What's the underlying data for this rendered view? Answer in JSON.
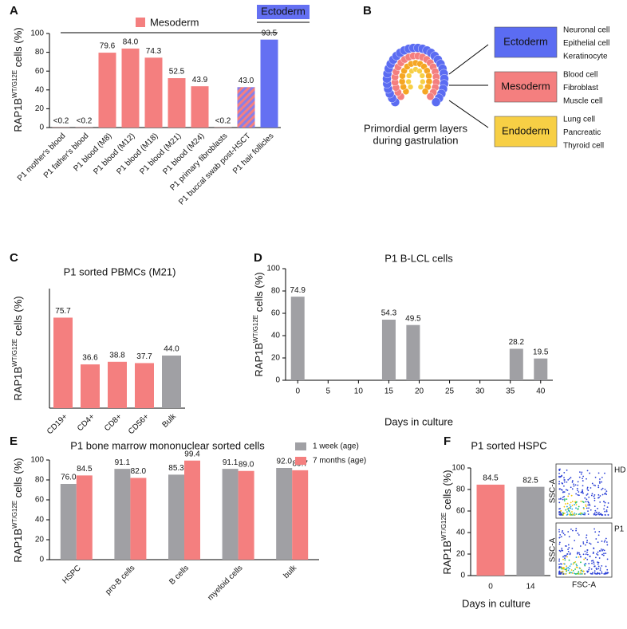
{
  "panel_labels": [
    "A",
    "B",
    "C",
    "D",
    "E",
    "F"
  ],
  "chart_data": [
    {
      "type": "bar",
      "categories": [
        "P1 mother's blood",
        "P1 father's blood",
        "P1 blood (M8)",
        "P1 blood (M12)",
        "P1 blood (M18)",
        "P1 blood (M21)",
        "P1 blood (M24)",
        "P1 primary fibroblasts",
        "P1 buccal swab post-HSCT",
        "P1 hair follicles"
      ],
      "values": [
        0.2,
        0.2,
        79.6,
        84,
        74.3,
        52.5,
        43.9,
        0.2,
        43,
        93.5
      ],
      "value_labels": [
        "<0.2",
        "<0.2",
        "79.6",
        "84.0",
        "74.3",
        "52.5",
        "43.9",
        "<0.2",
        "43.0",
        "93.5"
      ],
      "colors": [
        "#f47f7f",
        "#f47f7f",
        "#f47f7f",
        "#f47f7f",
        "#f47f7f",
        "#f47f7f",
        "#f47f7f",
        "#f47f7f",
        "#f47f7f",
        "#6470f2"
      ],
      "hatch": {
        "index": 8,
        "color": "#8a7fe6"
      },
      "legend": [
        {
          "name": "Mesoderm",
          "color": "#f47f7f"
        },
        {
          "name": "Ectoderm",
          "color": "#6470f2"
        }
      ],
      "ylim": [
        0,
        100
      ],
      "yticks": [
        0,
        20,
        40,
        60,
        80,
        100
      ],
      "y_label": {
        "text": "RAP1B",
        "superscript": "WT/G12E",
        "suffix": " cells (%)"
      }
    },
    {
      "type": "bar",
      "title": "P1 sorted PBMCs (M21)",
      "categories": [
        "CD19+",
        "CD4+",
        "CD8+",
        "CD56+",
        "Bulk"
      ],
      "values": [
        75.7,
        36.6,
        38.8,
        37.7,
        44
      ],
      "value_labels": [
        "75.7",
        "36.6",
        "38.8",
        "37.7",
        "44.0"
      ],
      "colors": [
        "#f47f7f",
        "#f47f7f",
        "#f47f7f",
        "#f47f7f",
        "#a0a0a4"
      ],
      "ylim": [
        0,
        100
      ],
      "y_label": {
        "text": "RAP1B",
        "superscript": "WT/G12E",
        "suffix": " cells (%)"
      }
    },
    {
      "type": "bar",
      "title": "P1 B-LCL cells",
      "x": [
        0,
        15,
        19,
        36,
        40
      ],
      "values": [
        74.9,
        54.3,
        49.5,
        28.2,
        19.5
      ],
      "value_labels": [
        "74.9",
        "54.3",
        "49.5",
        "28.2",
        "19.5"
      ],
      "color": "#a0a0a4",
      "xlim": [
        -2,
        42
      ],
      "xticks": [
        0,
        5,
        10,
        15,
        20,
        25,
        30,
        35,
        40
      ],
      "ylim": [
        0,
        100
      ],
      "yticks": [
        0,
        20,
        40,
        60,
        80,
        100
      ],
      "x_label": "Days in culture",
      "y_label": {
        "text": "RAP1B",
        "superscript": "WT/G12E",
        "suffix": " cells (%)"
      }
    },
    {
      "type": "bar",
      "title": "P1 bone marrow mononuclear sorted cells",
      "categories": [
        "HSPC",
        "pro-B cells",
        "B cells",
        "myeloid cells",
        "bulk"
      ],
      "series": [
        {
          "name": "1 week (age)",
          "color": "#a0a0a4",
          "values": [
            76,
            91.1,
            85.3,
            91.1,
            92
          ],
          "value_labels": [
            "76.0",
            "91.1",
            "85.3",
            "91.1",
            "92.0"
          ]
        },
        {
          "name": "7 months (age)",
          "color": "#f47f7f",
          "values": [
            84.5,
            82,
            99.4,
            89,
            89.7
          ],
          "value_labels": [
            "84.5",
            "82.0",
            "99.4",
            "89.0",
            "89.7"
          ]
        }
      ],
      "ylim": [
        0,
        100
      ],
      "yticks": [
        0,
        20,
        40,
        60,
        80,
        100
      ],
      "y_label": {
        "text": "RAP1B",
        "superscript": "WT/G12E",
        "suffix": " cells (%)"
      }
    },
    {
      "type": "bar",
      "title": "P1 sorted HSPC",
      "categories": [
        "0",
        "14"
      ],
      "values": [
        84.5,
        82.5
      ],
      "value_labels": [
        "84.5",
        "82.5"
      ],
      "colors": [
        "#f47f7f",
        "#a0a0a4"
      ],
      "ylim": [
        0,
        100
      ],
      "yticks": [
        0,
        20,
        40,
        60,
        80,
        100
      ],
      "x_label": "Days in culture",
      "y_label": {
        "text": "RAP1B",
        "superscript": "WT/G12E",
        "suffix": " cells (%)"
      },
      "insets": [
        {
          "label": "HD"
        },
        {
          "label": "P1"
        }
      ],
      "inset_x_label": "FSC-A",
      "inset_y_label": "SSC-A"
    }
  ],
  "diagram": {
    "caption": [
      "Primordial germ layers",
      "during gastrulation"
    ],
    "layers": [
      {
        "name": "Ectoderm",
        "color": "#5b6cf2",
        "cells": [
          "Neuronal cell",
          "Epithelial cell",
          "Keratinocyte"
        ]
      },
      {
        "name": "Mesoderm",
        "color": "#f47f7f",
        "cells": [
          "Blood cell",
          "Fibroblast",
          "Muscle cell"
        ]
      },
      {
        "name": "Endoderm",
        "color": "#f7cf45",
        "cells": [
          "Lung cell",
          "Pancreatic",
          "Thyroid cell"
        ]
      }
    ]
  }
}
